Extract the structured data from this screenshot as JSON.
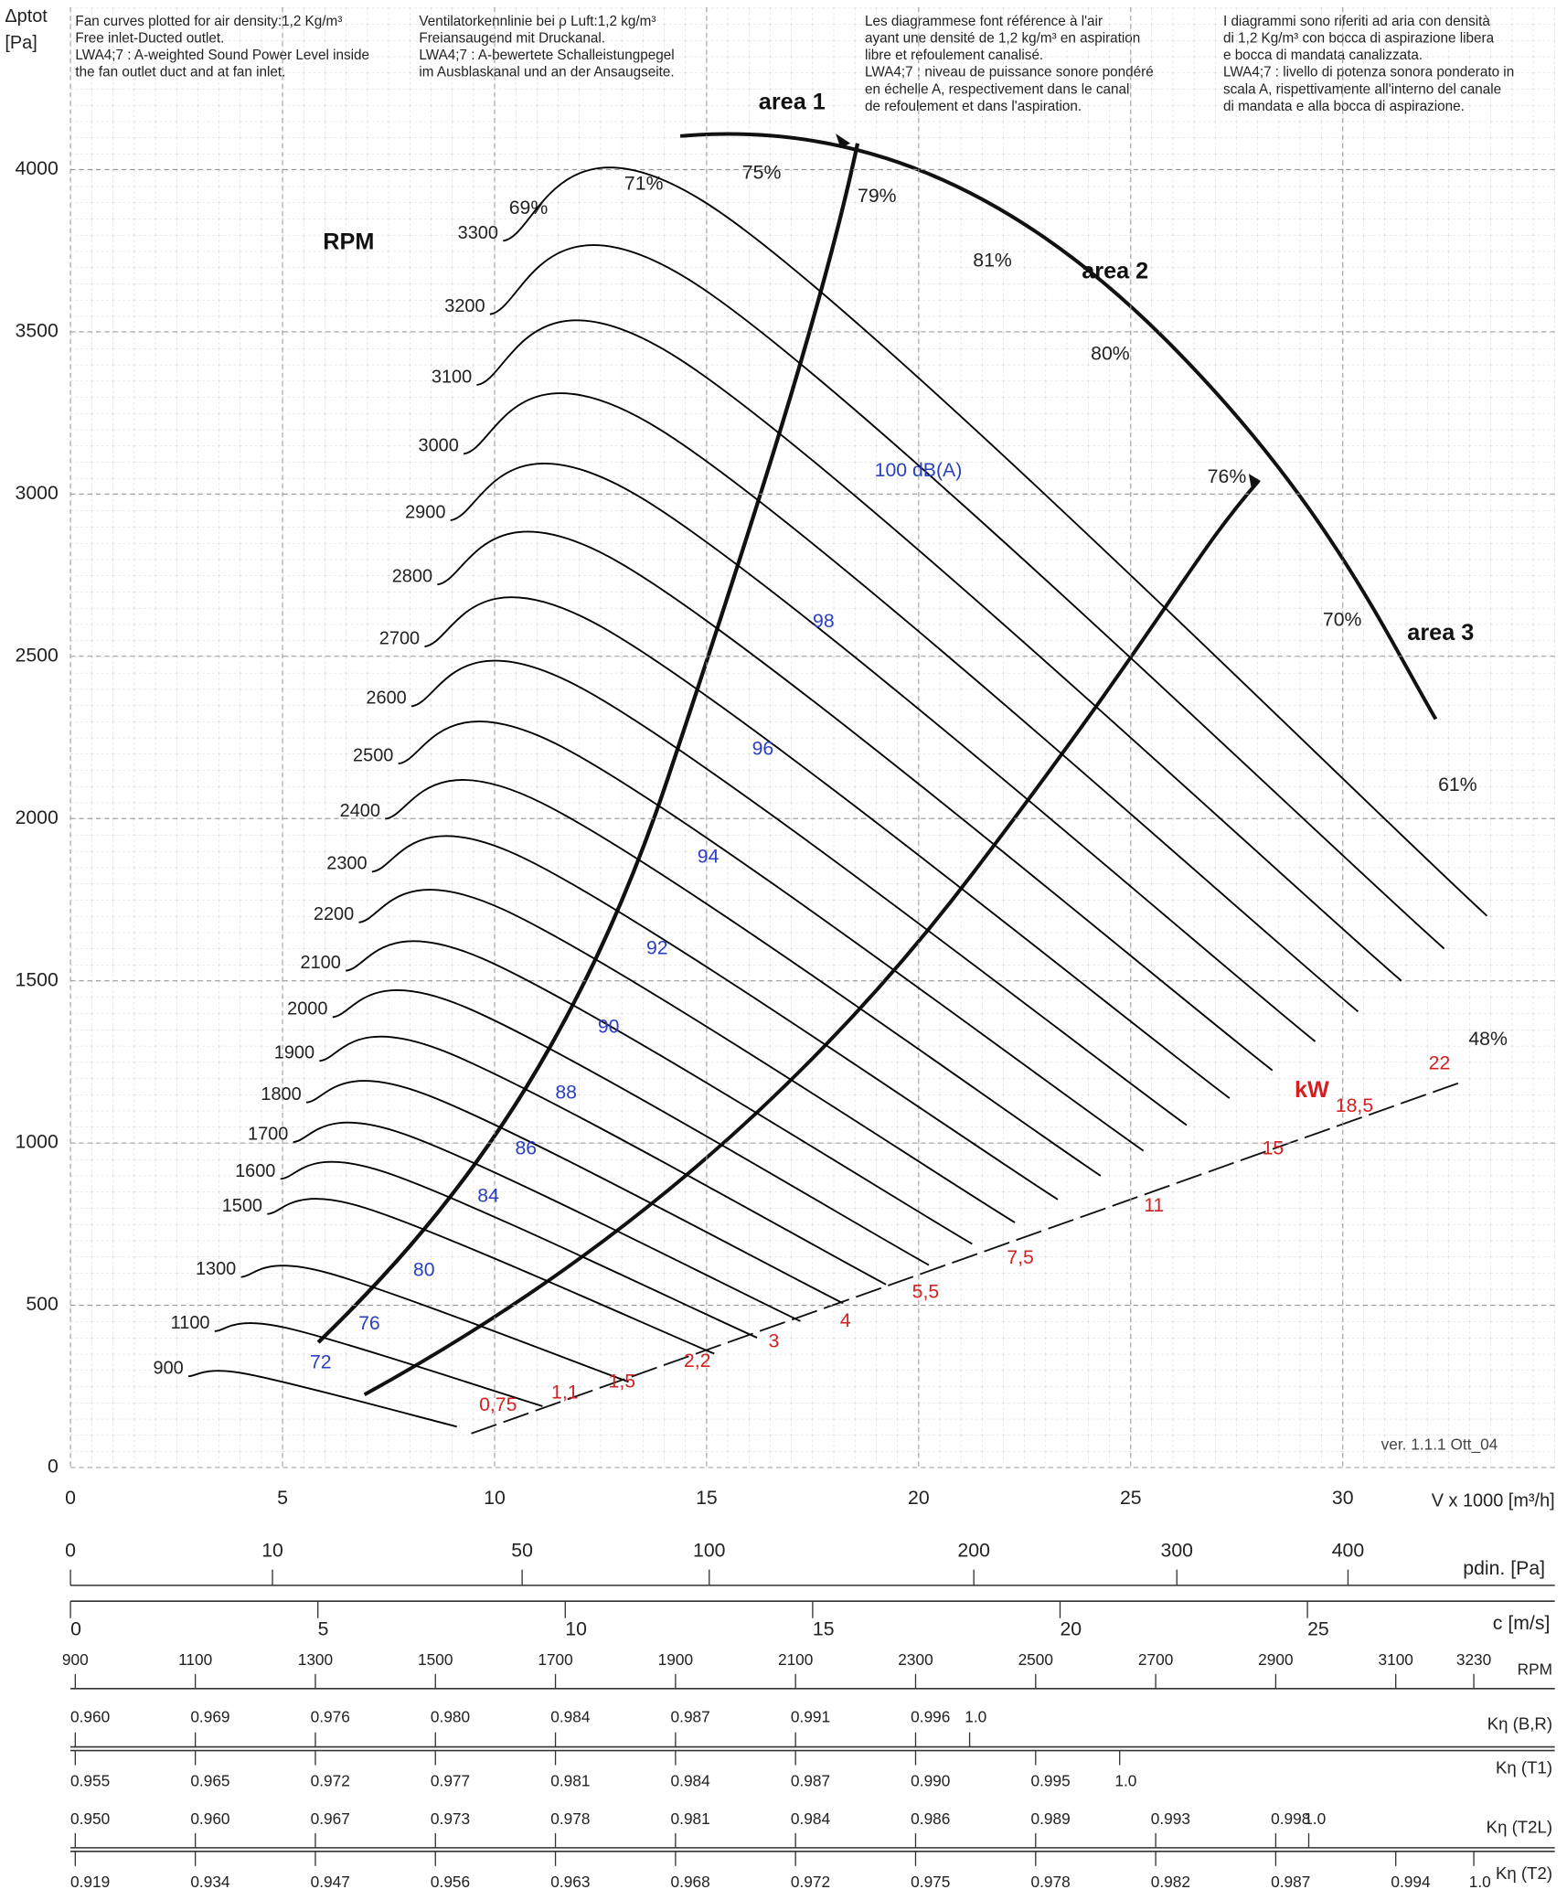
{
  "chart_data": {
    "type": "line",
    "notes": [
      [
        "Fan curves plotted for air density:1,2 Kg/m³",
        "Free inlet-Ducted outlet.",
        "LWA4;7 : A-weighted Sound Power Level inside",
        "the fan outlet duct and at fan inlet."
      ],
      [
        "Ventilatorkennlinie bei ρ Luft:1,2 kg/m³",
        "Freiansaugend mit Druckanal.",
        "LWA4;7 : A-bewertete Schalleistungpegel",
        "im Ausblaskanal und an der Ansaugseite."
      ],
      [
        "Les diagrammese font référence à l'air",
        "ayant une densité de 1,2 kg/m³ en aspiration",
        "libre et refoulement canalisé.",
        "LWA4;7 : niveau de puissance sonore pondéré",
        "en échelle A, respectivement dans le canal",
        "de refoulement et dans l'aspiration."
      ],
      [
        "I diagrammi sono riferiti ad aria con densità",
        "di 1,2 Kg/m³ con bocca di aspirazione libera",
        "e bocca di mandata canalizzata.",
        "LWA4;7 : livello di potenza sonora ponderato in",
        "scala A, rispettivamente all'interno del canale",
        "di mandata e alla bocca di aspirazione."
      ]
    ],
    "y_label": "Δptot",
    "y_unit": "[Pa]",
    "x_label": "V x 1000 [m³/h]",
    "xlim": [
      0,
      35
    ],
    "xticks": [
      0,
      5,
      10,
      15,
      20,
      25,
      30
    ],
    "ylim": [
      0,
      4500
    ],
    "yticks": [
      0,
      500,
      1000,
      1500,
      2000,
      2500,
      3000,
      3500,
      4000
    ],
    "grid": true,
    "series": [
      {
        "name": "900",
        "color": "#000000",
        "x": [
          2.78,
          4.17,
          9.11
        ],
        "values": [
          281,
          288,
          126
        ]
      },
      {
        "name": "1100",
        "color": "#000000",
        "x": [
          3.4,
          5.1,
          11.13
        ],
        "values": [
          420,
          430,
          189
        ]
      },
      {
        "name": "1300",
        "color": "#000000",
        "x": [
          4.02,
          6.03,
          13.16
        ],
        "values": [
          587,
          601,
          264
        ]
      },
      {
        "name": "1500",
        "color": "#000000",
        "x": [
          4.64,
          6.95,
          15.18
        ],
        "values": [
          781,
          800,
          351
        ]
      },
      {
        "name": "1600",
        "color": "#000000",
        "x": [
          4.95,
          7.42,
          16.19
        ],
        "values": [
          889,
          910,
          400
        ]
      },
      {
        "name": "1700",
        "color": "#000000",
        "x": [
          5.25,
          7.88,
          17.21
        ],
        "values": [
          1003,
          1027,
          451
        ]
      },
      {
        "name": "1800",
        "color": "#000000",
        "x": [
          5.56,
          8.35,
          18.22
        ],
        "values": [
          1125,
          1151,
          506
        ]
      },
      {
        "name": "1900",
        "color": "#000000",
        "x": [
          5.87,
          8.81,
          19.23
        ],
        "values": [
          1253,
          1283,
          564
        ]
      },
      {
        "name": "2000",
        "color": "#000000",
        "x": [
          6.18,
          9.27,
          20.24
        ],
        "values": [
          1388,
          1421,
          624
        ]
      },
      {
        "name": "2100",
        "color": "#000000",
        "x": [
          6.49,
          9.74,
          21.26
        ],
        "values": [
          1531,
          1567,
          689
        ]
      },
      {
        "name": "2200",
        "color": "#000000",
        "x": [
          6.8,
          10.2,
          22.27
        ],
        "values": [
          1680,
          1720,
          755
        ]
      },
      {
        "name": "2300",
        "color": "#000000",
        "x": [
          7.11,
          10.66,
          23.28
        ],
        "values": [
          1836,
          1880,
          826
        ]
      },
      {
        "name": "2400",
        "color": "#000000",
        "x": [
          7.42,
          11.13,
          24.29
        ],
        "values": [
          1999,
          2047,
          899
        ]
      },
      {
        "name": "2500",
        "color": "#000000",
        "x": [
          7.73,
          11.59,
          25.3
        ],
        "values": [
          2169,
          2221,
          976
        ]
      },
      {
        "name": "2600",
        "color": "#000000",
        "x": [
          8.04,
          12.05,
          26.32
        ],
        "values": [
          2346,
          2402,
          1055
        ]
      },
      {
        "name": "2700",
        "color": "#000000",
        "x": [
          8.35,
          12.52,
          27.33
        ],
        "values": [
          2530,
          2591,
          1138
        ]
      },
      {
        "name": "2800",
        "color": "#000000",
        "x": [
          8.65,
          12.98,
          28.34
        ],
        "values": [
          2721,
          2786,
          1224
        ]
      },
      {
        "name": "2900",
        "color": "#000000",
        "x": [
          8.96,
          13.45,
          29.35
        ],
        "values": [
          2919,
          2989,
          1313
        ]
      },
      {
        "name": "3000",
        "color": "#000000",
        "x": [
          9.27,
          13.91,
          30.36
        ],
        "values": [
          3124,
          3198,
          1405
        ]
      },
      {
        "name": "3100",
        "color": "#000000",
        "x": [
          9.58,
          14.37,
          31.38
        ],
        "values": [
          3336,
          3415,
          1500
        ]
      },
      {
        "name": "3200",
        "color": "#000000",
        "x": [
          9.89,
          14.84,
          32.39
        ],
        "values": [
          3554,
          3639,
          1599
        ]
      },
      {
        "name": "3300",
        "color": "#000000",
        "x": [
          10.2,
          15.3,
          33.4
        ],
        "values": [
          3780,
          3870,
          1700
        ]
      }
    ],
    "annotations": [
      {
        "text": "RPM",
        "color": "#111111",
        "weight": "bold"
      },
      {
        "text": "area 1",
        "color": "#111111",
        "weight": "bold"
      },
      {
        "text": "area 2",
        "color": "#111111",
        "weight": "bold"
      },
      {
        "text": "area 3",
        "color": "#111111",
        "weight": "bold"
      },
      {
        "text": "69%",
        "color": "#222222",
        "weight": "normal"
      },
      {
        "text": "71%",
        "color": "#222222",
        "weight": "normal"
      },
      {
        "text": "75%",
        "color": "#222222",
        "weight": "normal"
      },
      {
        "text": "79%",
        "color": "#222222",
        "weight": "normal"
      },
      {
        "text": "81%",
        "color": "#222222",
        "weight": "normal"
      },
      {
        "text": "80%",
        "color": "#222222",
        "weight": "normal"
      },
      {
        "text": "76%",
        "color": "#222222",
        "weight": "normal"
      },
      {
        "text": "70%",
        "color": "#222222",
        "weight": "normal"
      },
      {
        "text": "61%",
        "color": "#222222",
        "weight": "normal"
      },
      {
        "text": "48%",
        "color": "#222222",
        "weight": "normal"
      },
      {
        "text": "100 dB(A)",
        "color": "#2a3fc4",
        "weight": "normal"
      },
      {
        "text": "98",
        "color": "#2a3fc4",
        "weight": "normal"
      },
      {
        "text": "96",
        "color": "#2a3fc4",
        "weight": "normal"
      },
      {
        "text": "94",
        "color": "#2a3fc4",
        "weight": "normal"
      },
      {
        "text": "92",
        "color": "#2a3fc4",
        "weight": "normal"
      },
      {
        "text": "90",
        "color": "#2a3fc4",
        "weight": "normal"
      },
      {
        "text": "88",
        "color": "#2a3fc4",
        "weight": "normal"
      },
      {
        "text": "86",
        "color": "#2a3fc4",
        "weight": "normal"
      },
      {
        "text": "84",
        "color": "#2a3fc4",
        "weight": "normal"
      },
      {
        "text": "80",
        "color": "#2a3fc4",
        "weight": "normal"
      },
      {
        "text": "76",
        "color": "#2a3fc4",
        "weight": "normal"
      },
      {
        "text": "72",
        "color": "#2a3fc4",
        "weight": "normal"
      },
      {
        "text": "0,75",
        "color": "#d42020",
        "weight": "normal"
      },
      {
        "text": "1,1",
        "color": "#d42020",
        "weight": "normal"
      },
      {
        "text": "1,5",
        "color": "#d42020",
        "weight": "normal"
      },
      {
        "text": "2,2",
        "color": "#d42020",
        "weight": "normal"
      },
      {
        "text": "3",
        "color": "#d42020",
        "weight": "normal"
      },
      {
        "text": "4",
        "color": "#d42020",
        "weight": "normal"
      },
      {
        "text": "5,5",
        "color": "#d42020",
        "weight": "normal"
      },
      {
        "text": "7,5",
        "color": "#d42020",
        "weight": "normal"
      },
      {
        "text": "11",
        "color": "#d42020",
        "weight": "normal"
      },
      {
        "text": "15",
        "color": "#d42020",
        "weight": "normal"
      },
      {
        "text": "18,5",
        "color": "#d42020",
        "weight": "normal"
      },
      {
        "text": "22",
        "color": "#d42020",
        "weight": "normal"
      },
      {
        "text": "kW",
        "color": "#d42020",
        "weight": "bold"
      },
      {
        "text": "ver. 1.1.1 Ott_04",
        "color": "#444444",
        "weight": "normal"
      }
    ],
    "pdin_scale": {
      "label": "pdin. [Pa]",
      "lim": [
        0,
        540
      ],
      "scale": "sqrt",
      "ticks": [
        0,
        10,
        50,
        100,
        200,
        300,
        400
      ]
    },
    "velocity_scale": {
      "label": "c [m/s]",
      "lim": [
        0,
        30
      ],
      "ticks": [
        0,
        5,
        10,
        15,
        20,
        25
      ]
    },
    "rpm_scale": {
      "label": "RPM",
      "lim": [
        892,
        3365
      ],
      "ticks": [
        900,
        1100,
        1300,
        1500,
        1700,
        1900,
        2100,
        2300,
        2500,
        2700,
        2900,
        3100,
        3230
      ]
    },
    "k_rows": [
      {
        "name": "Kη (B,R)",
        "rpm": [
          900,
          1100,
          1300,
          1500,
          1700,
          1900,
          2100,
          2300,
          2390
        ],
        "values": [
          {
            "value": 0.96,
            "label": "0.960"
          },
          0.969,
          0.976,
          {
            "value": 0.98,
            "label": "0.980"
          },
          0.984,
          0.987,
          0.991,
          0.996,
          {
            "value": 1,
            "label": "1.0"
          }
        ]
      },
      {
        "name": "Kη (T1)",
        "rpm": [
          900,
          1100,
          1300,
          1500,
          1700,
          1900,
          2100,
          2300,
          2500,
          2640
        ],
        "values": [
          0.955,
          0.965,
          0.972,
          0.977,
          0.981,
          0.984,
          0.987,
          {
            "value": 0.99,
            "label": "0.990"
          },
          0.995,
          {
            "value": 1,
            "label": "1.0"
          }
        ]
      },
      {
        "name": "Kη (T2L)",
        "rpm": [
          900,
          1100,
          1300,
          1500,
          1700,
          1900,
          2100,
          2300,
          2500,
          2700,
          2900,
          2955
        ],
        "values": [
          {
            "value": 0.95,
            "label": "0.950"
          },
          {
            "value": 0.96,
            "label": "0.960"
          },
          0.967,
          0.973,
          0.978,
          0.981,
          0.984,
          0.986,
          0.989,
          0.993,
          0.998,
          {
            "value": 1,
            "label": "1.0"
          }
        ]
      },
      {
        "name": "Kη (T2)",
        "rpm": [
          900,
          1100,
          1300,
          1500,
          1700,
          1900,
          2100,
          2300,
          2500,
          2700,
          2900,
          3100,
          3230
        ],
        "values": [
          0.919,
          0.934,
          0.947,
          0.956,
          0.963,
          0.968,
          0.972,
          0.975,
          0.978,
          0.982,
          0.987,
          0.994,
          {
            "value": 1,
            "label": "1.0"
          }
        ]
      }
    ]
  }
}
